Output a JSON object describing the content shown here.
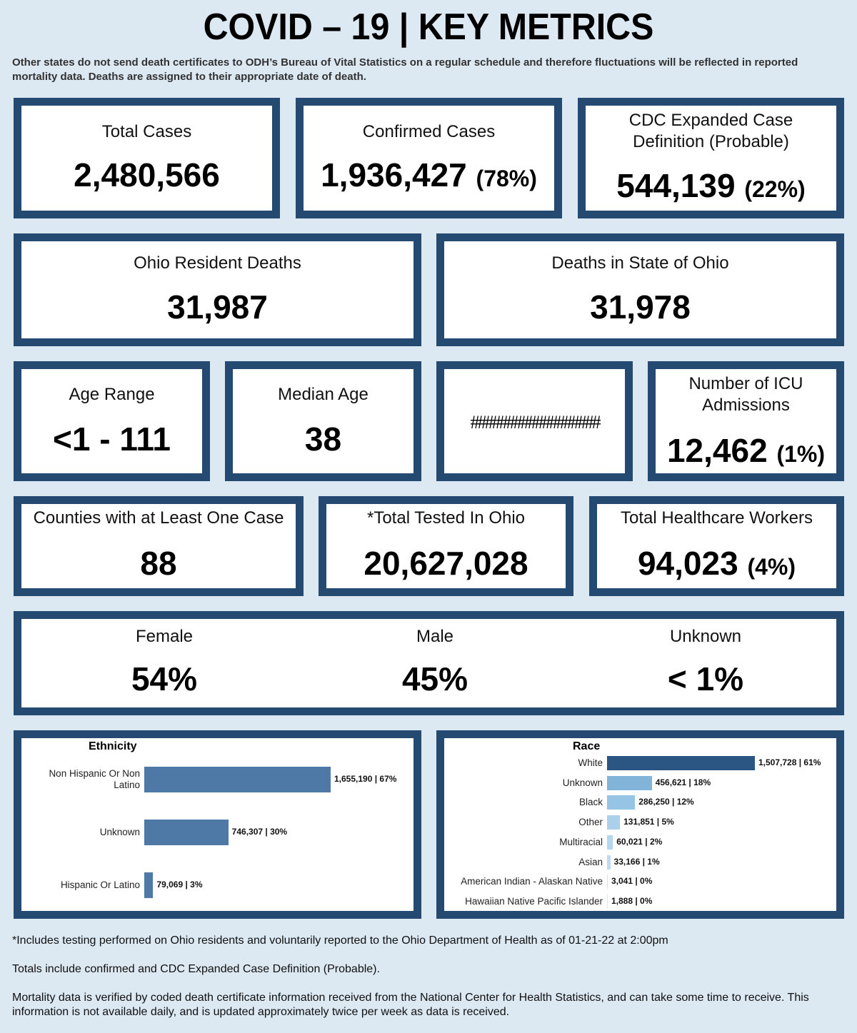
{
  "header": {
    "title": "COVID – 19 | KEY METRICS",
    "subtitle": "Other states do not send death certificates to ODH’s Bureau of Vital Statistics on a regular schedule and therefore fluctuations will be reflected in reported mortality data. Deaths are assigned to their appropriate date of death."
  },
  "metrics": {
    "total_cases": {
      "label": "Total Cases",
      "value": "2,480,566"
    },
    "confirmed_cases": {
      "label": "Confirmed Cases",
      "value": "1,936,427",
      "pct": "(78%)"
    },
    "probable_cases": {
      "label_line1": "CDC Expanded Case",
      "label_line2": "Definition (Probable)",
      "value": "544,139",
      "pct": "(22%)"
    },
    "resident_deaths": {
      "label": "Ohio Resident Deaths",
      "value": "31,987"
    },
    "state_deaths": {
      "label": "Deaths in State of Ohio",
      "value": "31,978"
    },
    "age_range": {
      "label": "Age Range",
      "value": "<1 - 111"
    },
    "median_age": {
      "label": "Median Age",
      "value": "38"
    },
    "overflow_cell": {
      "value": "##################"
    },
    "icu_admissions": {
      "label_line1": "Number of ICU",
      "label_line2": "Admissions",
      "value": "12,462",
      "pct": "(1%)"
    },
    "counties": {
      "label": "Counties with at Least One Case",
      "value": "88"
    },
    "total_tested": {
      "label": "*Total Tested In Ohio",
      "value": "20,627,028"
    },
    "healthcare_workers": {
      "label": "Total Healthcare Workers",
      "value": "94,023",
      "pct": "(4%)"
    }
  },
  "gender": [
    {
      "label": "Female",
      "value": "54%"
    },
    {
      "label": "Male",
      "value": "45%"
    },
    {
      "label": "Unknown",
      "value": "< 1%"
    }
  ],
  "chart_data": [
    {
      "type": "bar",
      "orientation": "horizontal",
      "title": "Ethnicity",
      "categories": [
        "Non Hispanic Or Non Latino",
        "Unknown",
        "Hispanic Or Latino"
      ],
      "values": [
        1655190,
        746307,
        79069
      ],
      "percents": [
        67,
        30,
        3
      ],
      "data_labels": [
        "1,655,190 | 67%",
        "746,307 | 30%",
        "79,069 | 3%"
      ],
      "colors": [
        "#4e78a6",
        "#4e78a6",
        "#4e78a6"
      ]
    },
    {
      "type": "bar",
      "orientation": "horizontal",
      "title": "Race",
      "categories": [
        "White",
        "Unknown",
        "Black",
        "Other",
        "Multiracial",
        "Asian",
        "American Indian - Alaskan Native",
        "Hawaiian Native Pacific Islander"
      ],
      "values": [
        1507728,
        456621,
        286250,
        131851,
        60021,
        33166,
        3041,
        1888
      ],
      "percents": [
        61,
        18,
        12,
        5,
        2,
        1,
        0,
        0
      ],
      "data_labels": [
        "1,507,728 | 61%",
        "456,621 | 18%",
        "286,250 | 12%",
        "131,851 | 5%",
        "60,021 | 2%",
        "33,166 | 1%",
        "3,041 | 0%",
        "1,888 | 0%"
      ],
      "colors": [
        "#2b5683",
        "#82b3d9",
        "#96c4e4",
        "#a9d1ec",
        "#b2d8f0",
        "#bbdcf2",
        "#cfe6f6",
        "#d6eaf8"
      ]
    }
  ],
  "footnotes": {
    "tested": "*Includes testing performed on Ohio residents and voluntarily reported to the Ohio Department of Health as of 01-21-22 at 2:00pm",
    "totals": "Totals include confirmed and CDC Expanded Case Definition (Probable).",
    "mortality": "Mortality data is verified by coded death certificate information received from the National Center for Health Statistics, and can take some time to receive. This information is not available daily, and is updated approximately twice per week as data is received."
  }
}
